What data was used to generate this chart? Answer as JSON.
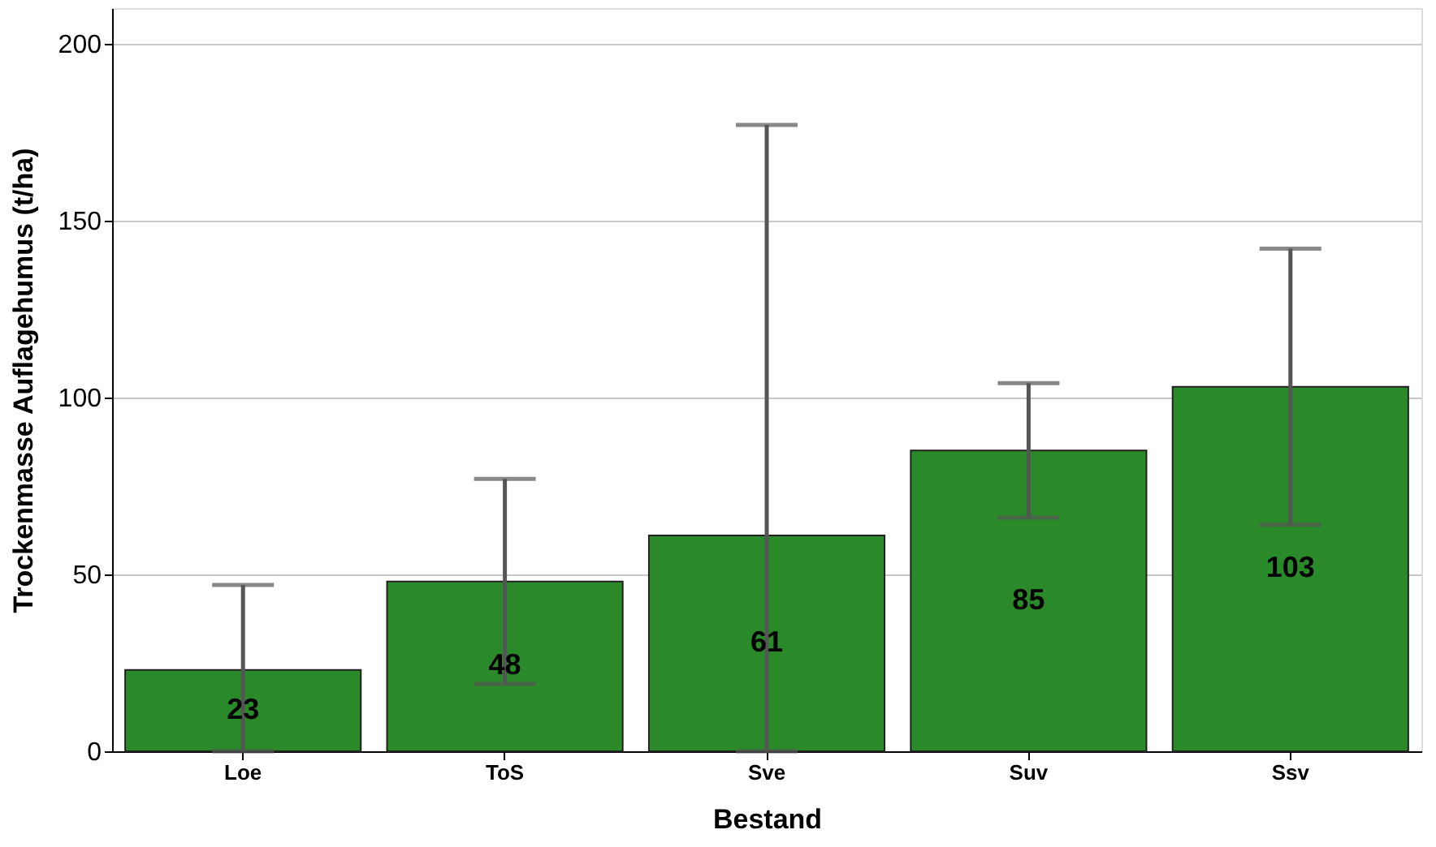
{
  "chart_data": {
    "type": "bar",
    "xlabel": "Bestand",
    "ylabel": "Trockenmasse Auflagehumus (t/ha)",
    "categories": [
      "Loe",
      "ToS",
      "Sve",
      "Suv",
      "Ssv"
    ],
    "values": [
      23,
      48,
      61,
      85,
      103
    ],
    "errors": [
      [
        0,
        47
      ],
      [
        19,
        77
      ],
      [
        0,
        177
      ],
      [
        66,
        104
      ],
      [
        64,
        142
      ]
    ],
    "color": "#2a8a2a",
    "data_labels": true,
    "ylim": [
      0,
      210
    ],
    "yticks": [
      0,
      50,
      100,
      150,
      200
    ],
    "grid": "y"
  }
}
